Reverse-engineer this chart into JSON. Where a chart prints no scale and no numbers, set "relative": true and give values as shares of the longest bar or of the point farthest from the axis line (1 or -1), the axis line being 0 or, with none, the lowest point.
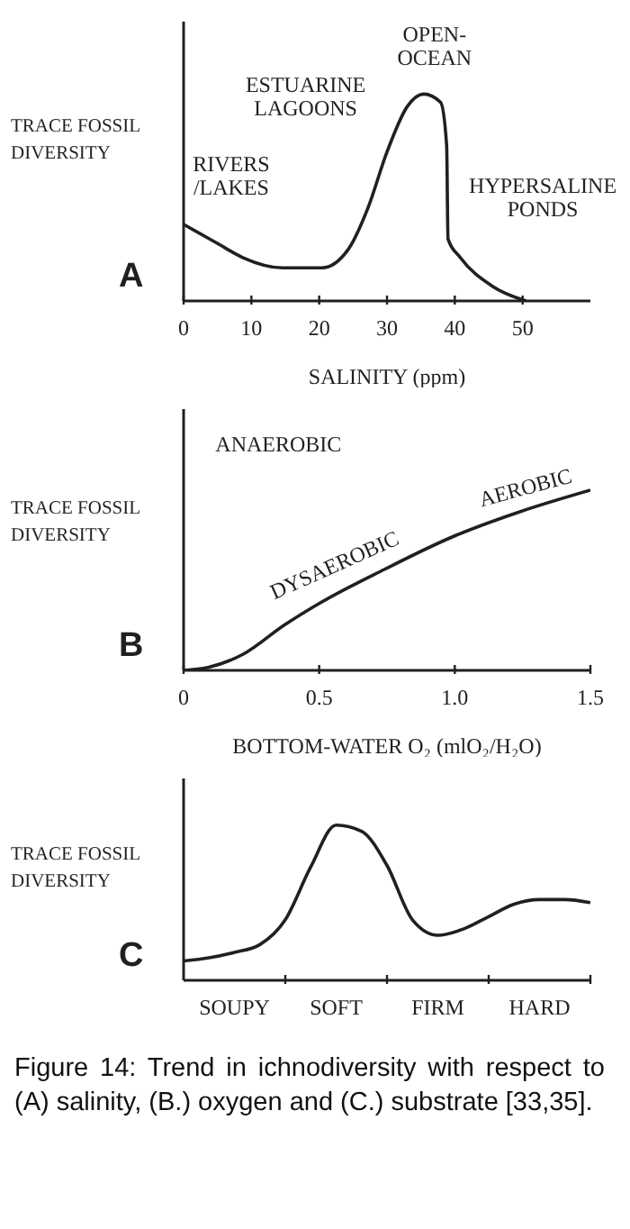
{
  "chart_data": [
    {
      "type": "line",
      "title": "A",
      "xlabel": "SALINITY (ppm)",
      "ylabel": "TRACE FOSSIL DIVERSITY",
      "relative": true,
      "xlim": [
        0,
        60
      ],
      "xticks": [
        0,
        10,
        20,
        30,
        40,
        50
      ],
      "series": [
        {
          "color": "#231f20",
          "x": [
            0,
            4.9,
            8.7,
            14.6,
            20.4,
            24.3,
            27.2,
            30,
            33,
            35.4,
            37.9,
            38.8,
            39,
            40.8,
            45.6,
            50.5
          ],
          "values": [
            0.37,
            0.28,
            0.21,
            0.16,
            0.16,
            0.25,
            0.45,
            0.72,
            0.94,
            1,
            0.96,
            0.75,
            0.3,
            0.21,
            0.07,
            0
          ]
        }
      ],
      "annotations": [
        "RIVERS /LAKES",
        "ESTUARINE LAGOONS",
        "OPEN-OCEAN",
        "HYPERSALINE PONDS"
      ]
    },
    {
      "type": "line",
      "title": "B",
      "xlabel": "BOTTOM-WATER O₂ (mlO₂/H₂O)",
      "ylabel": "TRACE FOSSIL DIVERSITY",
      "relative": true,
      "xlim": [
        0,
        1.5
      ],
      "xticks": [
        0,
        0.5,
        {
          "value": 1,
          "label": "1.0"
        },
        1.5
      ],
      "series": [
        {
          "color": "#231f20",
          "x": [
            0,
            0.09,
            0.22,
            0.37,
            0.51,
            0.74,
            0.99,
            1.24,
            1.5
          ],
          "values": [
            0,
            0.016,
            0.09,
            0.25,
            0.38,
            0.56,
            0.74,
            0.88,
            1
          ]
        }
      ],
      "annotations": [
        "ANAEROBIC",
        "DYSAEROBIC",
        "AEROBIC"
      ]
    },
    {
      "type": "line",
      "title": "C",
      "ylabel": "TRACE FOSSIL DIVERSITY",
      "relative": true,
      "categories": [
        null,
        null,
        "SOUPY",
        null,
        null,
        null,
        "SOFT",
        null,
        null,
        null,
        "FIRM",
        null,
        null,
        null,
        "HARD",
        null,
        null
      ],
      "series": [
        {
          "color": "#231f20",
          "values": [
            0.125,
            0.145,
            0.18,
            0.23,
            0.39,
            0.73,
            1,
            0.96,
            0.74,
            0.39,
            0.29,
            0.33,
            0.41,
            0.49,
            0.52,
            0.52,
            0.5
          ]
        }
      ],
      "annotations": [
        "Figure 14: Trend in ichnodiversity with respect to (A) salinity, (B.) oxygen and (C.) substrate [33,35]."
      ]
    }
  ]
}
